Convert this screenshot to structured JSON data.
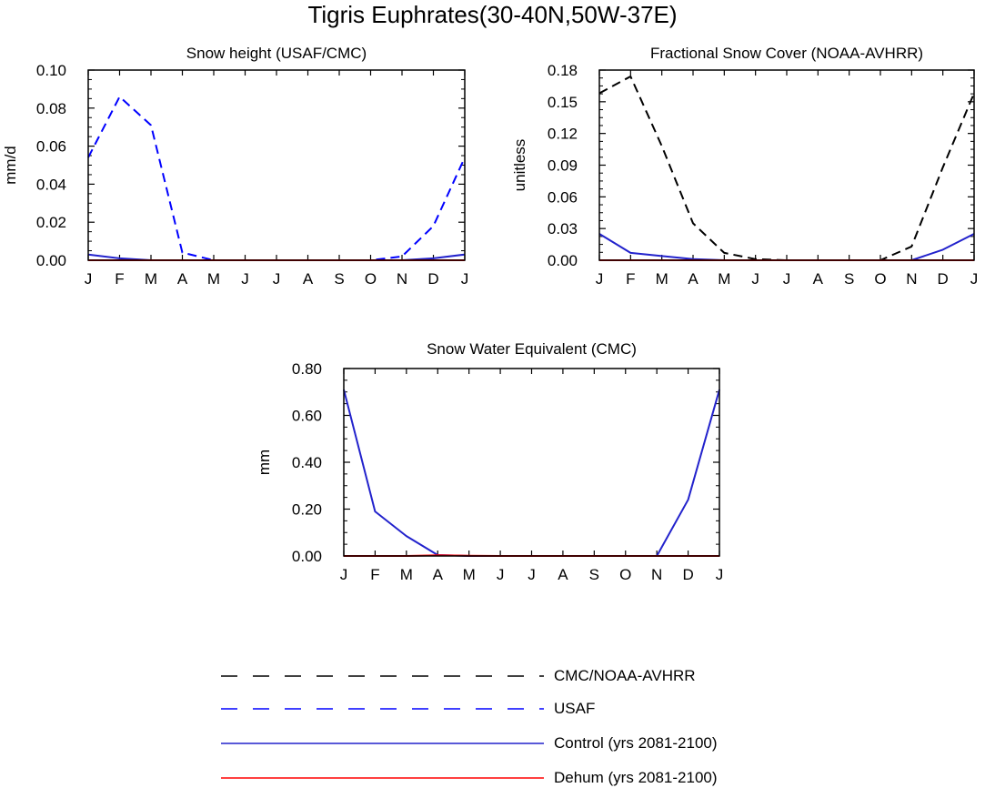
{
  "title": "Tigris Euphrates(30-40N,50W-37E)",
  "colors": {
    "obs": "#000000",
    "usaf": "#0000ff",
    "control": "#2222cc",
    "dehum": "#ff0000"
  },
  "chart_data": [
    {
      "id": "snow-height",
      "type": "line",
      "title": "Snow height (USAF/CMC)",
      "xlabel": "",
      "ylabel": "mm/d",
      "categories": [
        "J",
        "F",
        "M",
        "A",
        "M",
        "J",
        "J",
        "A",
        "S",
        "O",
        "N",
        "D",
        "J"
      ],
      "ylim": [
        0,
        0.1
      ],
      "yticks": [
        "0.00",
        "0.02",
        "0.04",
        "0.06",
        "0.08",
        "0.10"
      ],
      "series": [
        {
          "name": "USAF",
          "style": "dashed",
          "color": "#0000ff",
          "values": [
            0.054,
            0.086,
            0.071,
            0.004,
            0.0,
            0.0,
            0.0,
            0.0,
            0.0,
            0.0,
            0.002,
            0.018,
            0.054
          ]
        },
        {
          "name": "Control (yrs 2081-2100)",
          "style": "solid",
          "color": "#2222cc",
          "values": [
            0.003,
            0.001,
            0.0,
            0.0,
            0.0,
            0.0,
            0.0,
            0.0,
            0.0,
            0.0,
            0.0,
            0.001,
            0.003
          ]
        },
        {
          "name": "Dehum (yrs 2081-2100)",
          "style": "solid",
          "color": "#ff0000",
          "values": [
            0.0,
            0.0,
            0.0,
            0.0,
            0.0,
            0.0,
            0.0,
            0.0,
            0.0,
            0.0,
            0.0,
            0.0,
            0.0
          ]
        }
      ]
    },
    {
      "id": "snow-cover",
      "type": "line",
      "title": "Fractional Snow Cover (NOAA-AVHRR)",
      "xlabel": "",
      "ylabel": "unitless",
      "categories": [
        "J",
        "F",
        "M",
        "A",
        "M",
        "J",
        "J",
        "A",
        "S",
        "O",
        "N",
        "D",
        "J"
      ],
      "ylim": [
        0,
        0.18
      ],
      "yticks": [
        "0.00",
        "0.03",
        "0.06",
        "0.09",
        "0.12",
        "0.15",
        "0.18"
      ],
      "series": [
        {
          "name": "CMC/NOAA-AVHRR",
          "style": "dashed",
          "color": "#000000",
          "values": [
            0.158,
            0.174,
            0.108,
            0.035,
            0.007,
            0.001,
            0.0,
            0.0,
            0.0,
            0.0,
            0.013,
            0.088,
            0.158
          ]
        },
        {
          "name": "Control (yrs 2081-2100)",
          "style": "solid",
          "color": "#2222cc",
          "values": [
            0.025,
            0.007,
            0.004,
            0.001,
            0.0,
            0.0,
            0.0,
            0.0,
            0.0,
            0.0,
            0.0,
            0.01,
            0.025
          ]
        },
        {
          "name": "Dehum (yrs 2081-2100)",
          "style": "solid",
          "color": "#ff0000",
          "values": [
            0.0,
            0.0,
            0.0,
            0.0,
            0.0,
            0.0,
            0.0,
            0.0,
            0.0,
            0.0,
            0.0,
            0.0,
            0.0
          ]
        }
      ]
    },
    {
      "id": "swe",
      "type": "line",
      "title": "Snow Water Equivalent (CMC)",
      "xlabel": "",
      "ylabel": "mm",
      "categories": [
        "J",
        "F",
        "M",
        "A",
        "M",
        "J",
        "J",
        "A",
        "S",
        "O",
        "N",
        "D",
        "J"
      ],
      "ylim": [
        0,
        0.8
      ],
      "yticks": [
        "0.00",
        "0.20",
        "0.40",
        "0.60",
        "0.80"
      ],
      "series": [
        {
          "name": "Control (yrs 2081-2100)",
          "style": "solid",
          "color": "#2222cc",
          "values": [
            0.71,
            0.19,
            0.085,
            0.004,
            0.0,
            0.0,
            0.0,
            0.0,
            0.0,
            0.0,
            0.0,
            0.24,
            0.71
          ]
        },
        {
          "name": "Dehum (yrs 2081-2100)",
          "style": "solid",
          "color": "#ff0000",
          "values": [
            0.0,
            0.0,
            0.0,
            0.003,
            0.001,
            0.0,
            0.0,
            0.0,
            0.0,
            0.0,
            0.0,
            0.0,
            0.0
          ]
        }
      ]
    }
  ],
  "legend": [
    {
      "label": "CMC/NOAA-AVHRR",
      "style": "dashed",
      "color": "#000000"
    },
    {
      "label": "USAF",
      "style": "dashed",
      "color": "#0000ff"
    },
    {
      "label": "Control (yrs 2081-2100)",
      "style": "solid",
      "color": "#2222cc"
    },
    {
      "label": "Dehum (yrs 2081-2100)",
      "style": "solid",
      "color": "#ff0000"
    }
  ]
}
